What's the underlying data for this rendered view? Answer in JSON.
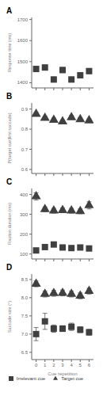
{
  "chart_data": [
    {
      "type": "scatter",
      "title": "A",
      "ylabel": "Response time (ms)",
      "x": [
        0,
        1,
        2,
        3,
        4,
        5,
        6
      ],
      "xlim": [
        -0.5,
        6.5
      ],
      "xticks": [
        0,
        1,
        2,
        3,
        4,
        5,
        6
      ],
      "ylim": [
        1375,
        1710
      ],
      "yticks": [
        1400,
        1500,
        1600,
        1700
      ],
      "tick_labels": "y",
      "series": [
        {
          "name": "Irrelevant cue",
          "color": "#404040",
          "marker": "square",
          "values": [
            1465,
            1472,
            1415,
            1460,
            1415,
            1435,
            1455
          ],
          "errors": [
            12,
            12,
            12,
            12,
            12,
            12,
            12
          ]
        }
      ]
    },
    {
      "type": "scatter",
      "title": "B",
      "ylabel": "P(target cue|first saccade)",
      "x": [
        0,
        1,
        2,
        3,
        4,
        5,
        6
      ],
      "xlim": [
        -0.5,
        6.5
      ],
      "xticks": [
        0,
        1,
        2,
        3,
        4,
        5,
        6
      ],
      "ylim": [
        0.58,
        0.93
      ],
      "yticks": [
        0.6,
        0.7,
        0.8,
        0.9
      ],
      "tick_labels": "y",
      "series": [
        {
          "name": "Target cue",
          "color": "#404040",
          "marker": "triangle",
          "values": [
            0.875,
            0.855,
            0.845,
            0.838,
            0.858,
            0.848,
            0.843
          ],
          "errors": [
            0.008,
            0.008,
            0.01,
            0.008,
            0.01,
            0.008,
            0.008
          ]
        }
      ]
    },
    {
      "type": "scatter",
      "title": "C",
      "ylabel": "Fixation duration (ms)",
      "x": [
        0,
        1,
        2,
        3,
        4,
        5,
        6
      ],
      "xlim": [
        -0.5,
        6.5
      ],
      "xticks": [
        0,
        1,
        2,
        3,
        4,
        5,
        6
      ],
      "ylim": [
        75,
        430
      ],
      "yticks": [
        100,
        200,
        300,
        400
      ],
      "tick_labels": "y",
      "series": [
        {
          "name": "Irrelevant cue",
          "color": "#404040",
          "marker": "square",
          "values": [
            118,
            135,
            148,
            133,
            130,
            133,
            128
          ],
          "errors": [
            8,
            8,
            8,
            8,
            8,
            8,
            8
          ]
        },
        {
          "name": "Target cue",
          "color": "#404040",
          "marker": "triangle",
          "values": [
            390,
            325,
            318,
            320,
            318,
            315,
            345
          ],
          "errors": [
            18,
            12,
            12,
            12,
            12,
            12,
            18
          ]
        }
      ]
    },
    {
      "type": "scatter",
      "title": "D",
      "ylabel": "Saccade size (°)",
      "xlabel": "Cue repetition",
      "x": [
        0,
        1,
        2,
        3,
        4,
        5,
        6
      ],
      "xlim": [
        -0.5,
        6.5
      ],
      "xticks": [
        0,
        1,
        2,
        3,
        4,
        5,
        6
      ],
      "ylim": [
        6.3,
        8.65
      ],
      "yticks": [
        6.5,
        {
          "value": 7.0,
          "label": "7.0"
        },
        7.5,
        {
          "value": 8.0,
          "label": "8.0"
        },
        8.5
      ],
      "legend": "bottom",
      "series": [
        {
          "name": "Irrelevant cue",
          "color": "#404040",
          "marker": "square",
          "values": [
            7.0,
            7.35,
            7.15,
            7.15,
            7.2,
            7.12,
            7.05
          ],
          "errors": [
            0.18,
            0.22,
            0.1,
            0.08,
            0.1,
            0.08,
            0.08
          ]
        },
        {
          "name": "Target cue",
          "color": "#404040",
          "marker": "triangle",
          "values": [
            8.38,
            8.1,
            8.12,
            8.13,
            8.1,
            8.05,
            8.18
          ],
          "errors": [
            0.08,
            0.08,
            0.08,
            0.08,
            0.08,
            0.08,
            0.08
          ]
        }
      ]
    }
  ]
}
